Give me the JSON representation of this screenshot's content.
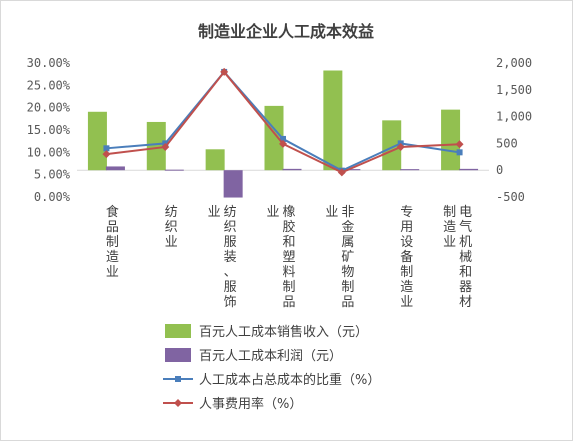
{
  "chart_data": {
    "type": "bar",
    "title": "制造业企业人工成本效益",
    "categories": [
      "食品制造业",
      "纺织业",
      "纺织服装、服饰业",
      "橡胶和塑料制品业",
      "非金属矿物制品业",
      "专用设备制造业",
      "电气机械和器材制造业"
    ],
    "category_label_lines": [
      [
        "食品制造业"
      ],
      [
        "纺织业"
      ],
      [
        "纺织服装、服饰",
        "业"
      ],
      [
        "橡胶和塑料制品",
        "业"
      ],
      [
        "非金属矿物制品",
        "业"
      ],
      [
        "专用设备制造业"
      ],
      [
        "电气机械和器材",
        "制造业"
      ]
    ],
    "y_left": {
      "ticks": [
        "0.00%",
        "5.00%",
        "10.00%",
        "15.00%",
        "20.00%",
        "25.00%",
        "30.00%"
      ],
      "ylim": [
        0,
        30
      ]
    },
    "y_right": {
      "ticks": [
        "-500",
        "0",
        "500",
        "1,000",
        "1,500",
        "2,000"
      ],
      "ylim": [
        -500,
        2000
      ]
    },
    "series": [
      {
        "name": "百元人工成本销售收入（元）",
        "kind": "bar",
        "axis": "right",
        "color": "#92c050",
        "values": [
          1090,
          900,
          390,
          1200,
          1860,
          930,
          1130
        ]
      },
      {
        "name": "百元人工成本利润（元）",
        "kind": "bar",
        "axis": "right",
        "color": "#8064a2",
        "values": [
          70,
          10,
          -510,
          25,
          20,
          20,
          25
        ]
      },
      {
        "name": "人工成本占总成本的比重（%）",
        "kind": "line",
        "axis": "left",
        "color": "#4a7ebb",
        "marker": "square",
        "values": [
          10.9,
          12.0,
          28.0,
          13.0,
          5.9,
          12.0,
          10.0
        ]
      },
      {
        "name": "人事费用率（%）",
        "kind": "line",
        "axis": "left",
        "color": "#c0504d",
        "marker": "diamond",
        "values": [
          9.6,
          11.2,
          28.0,
          11.9,
          5.5,
          11.2,
          11.8
        ]
      }
    ],
    "legend_position": "bottom",
    "grid": false
  }
}
